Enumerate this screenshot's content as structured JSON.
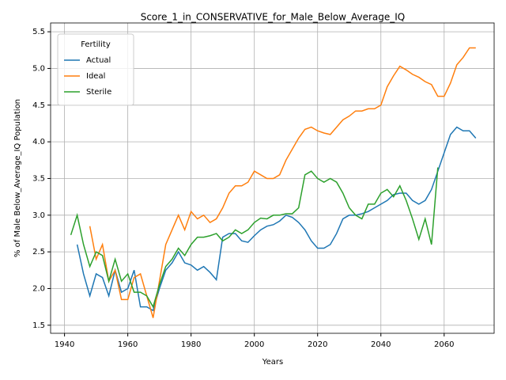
{
  "chart_data": {
    "type": "line",
    "title": "Score_1_in_CONSERVATIVE_for_Male_Below_Average_IQ",
    "x_label": "Years",
    "y_label": "% of Male Below_Average_IQ Population",
    "legend_title": "Fertility",
    "legend": "upper left",
    "grid": true,
    "x": [
      1942,
      1944,
      1946,
      1948,
      1950,
      1952,
      1954,
      1956,
      1958,
      1960,
      1962,
      1964,
      1966,
      1968,
      1970,
      1972,
      1974,
      1976,
      1978,
      1980,
      1982,
      1984,
      1986,
      1988,
      1990,
      1992,
      1994,
      1996,
      1998,
      2000,
      2002,
      2004,
      2006,
      2008,
      2010,
      2012,
      2014,
      2016,
      2018,
      2020,
      2022,
      2024,
      2026,
      2028,
      2030,
      2032,
      2034,
      2036,
      2038,
      2040,
      2042,
      2044,
      2046,
      2048,
      2050,
      2052,
      2054,
      2056,
      2058,
      2060,
      2062,
      2064,
      2066,
      2068,
      2070
    ],
    "series": [
      {
        "name": "Actual",
        "color": "#1f77b4",
        "values": [
          null,
          2.6,
          2.2,
          1.9,
          2.2,
          2.15,
          1.9,
          2.25,
          1.95,
          2.0,
          2.25,
          1.75,
          1.75,
          1.7,
          2.0,
          2.25,
          2.35,
          2.5,
          2.35,
          2.32,
          2.25,
          2.3,
          2.22,
          2.12,
          2.7,
          2.75,
          2.75,
          2.65,
          2.63,
          2.72,
          2.8,
          2.85,
          2.87,
          2.92,
          3.0,
          2.97,
          2.9,
          2.8,
          2.65,
          2.55,
          2.55,
          2.6,
          2.75,
          2.95,
          3.0,
          3.0,
          3.02,
          3.05,
          3.1,
          3.15,
          3.2,
          3.28,
          3.3,
          3.3,
          3.2,
          3.15,
          3.2,
          3.35,
          3.6,
          3.85,
          4.1,
          4.2,
          4.15,
          4.15,
          4.05
        ]
      },
      {
        "name": "Ideal",
        "color": "#ff7f0e",
        "values": [
          null,
          null,
          null,
          2.85,
          2.4,
          2.6,
          2.1,
          2.25,
          1.85,
          1.85,
          2.15,
          2.2,
          1.9,
          1.6,
          2.1,
          2.6,
          2.8,
          3.0,
          2.8,
          3.05,
          2.95,
          3.0,
          2.9,
          2.95,
          3.1,
          3.3,
          3.4,
          3.4,
          3.45,
          3.6,
          3.55,
          3.5,
          3.5,
          3.55,
          3.75,
          3.9,
          4.05,
          4.17,
          4.2,
          4.15,
          4.12,
          4.1,
          4.2,
          4.3,
          4.35,
          4.42,
          4.42,
          4.45,
          4.45,
          4.5,
          4.75,
          4.9,
          5.03,
          4.98,
          4.92,
          4.88,
          4.82,
          4.78,
          4.62,
          4.62,
          4.8,
          5.05,
          5.15,
          5.28,
          5.28
        ]
      },
      {
        "name": "Sterile",
        "color": "#2ca02c",
        "values": [
          2.73,
          3.0,
          2.6,
          2.3,
          2.5,
          2.45,
          2.1,
          2.4,
          2.1,
          2.2,
          1.95,
          1.95,
          1.9,
          1.75,
          2.05,
          2.3,
          2.4,
          2.55,
          2.45,
          2.6,
          2.7,
          2.7,
          2.72,
          2.75,
          2.65,
          2.7,
          2.8,
          2.75,
          2.8,
          2.9,
          2.96,
          2.95,
          3.0,
          3.0,
          3.02,
          3.02,
          3.1,
          3.55,
          3.6,
          3.5,
          3.45,
          3.5,
          3.45,
          3.3,
          3.1,
          3.0,
          2.95,
          3.15,
          3.15,
          3.3,
          3.35,
          3.25,
          3.4,
          3.2,
          2.95,
          2.67,
          2.95,
          2.6,
          3.65,
          null,
          null,
          null,
          null,
          null,
          null
        ]
      }
    ],
    "xlim": [
      1935.6,
      2075.8
    ],
    "xticks": [
      1940,
      1960,
      1980,
      2000,
      2020,
      2040,
      2060
    ],
    "ylim": [
      1.39,
      5.62
    ],
    "yticks": [
      {
        "value": 1.5,
        "label": "1.5"
      },
      {
        "value": 2,
        "label": "2.0"
      },
      {
        "value": 2.5,
        "label": "2.5"
      },
      {
        "value": 3,
        "label": "3.0"
      },
      {
        "value": 3.5,
        "label": "3.5"
      },
      {
        "value": 4,
        "label": "4.0"
      },
      {
        "value": 4.5,
        "label": "4.5"
      },
      {
        "value": 5,
        "label": "5.0"
      },
      {
        "value": 5.5,
        "label": "5.5"
      }
    ]
  }
}
